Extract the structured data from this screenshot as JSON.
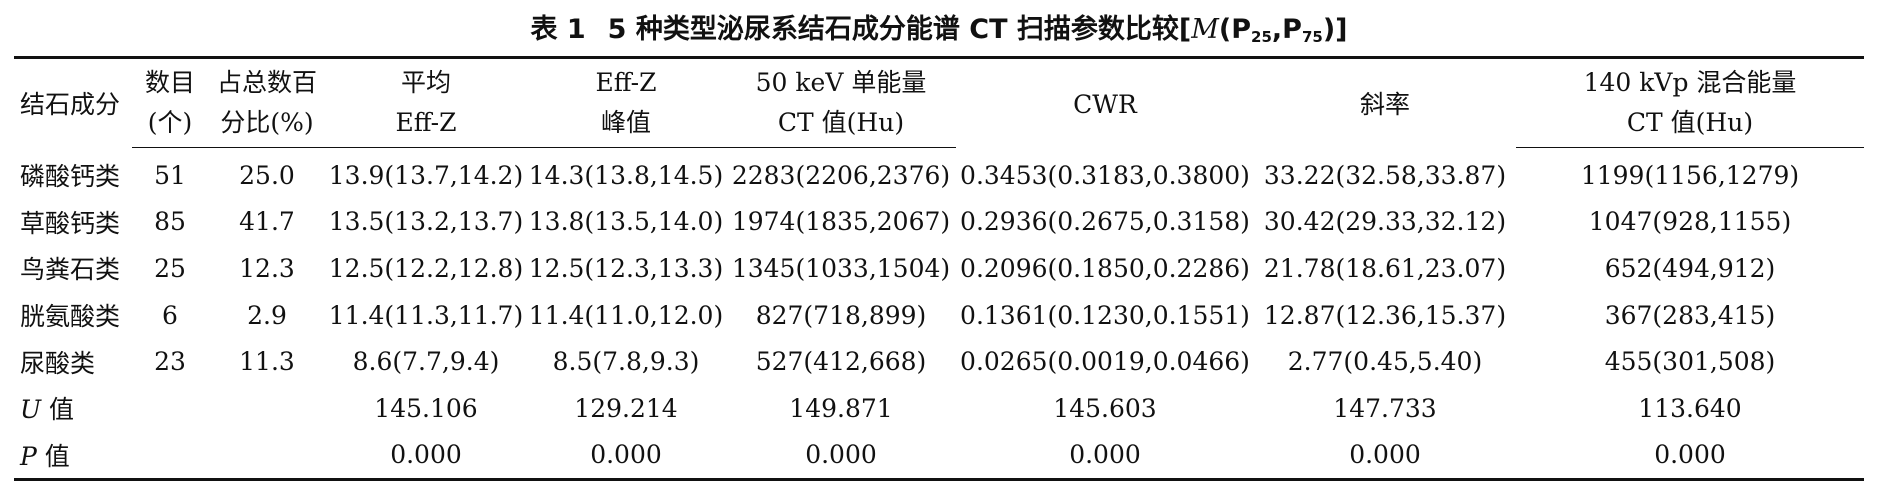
{
  "caption": {
    "label": "表 1",
    "title": "5 种类型泌尿系结石成分能谱 CT 扫描参数比较",
    "stat_prefix": "[",
    "stat_M": "M",
    "stat_open": "(P",
    "p25_sub": "25",
    "stat_sep": ",P",
    "p75_sub": "75",
    "stat_close": ")]"
  },
  "header": {
    "component": "结石成分",
    "count_line1": "数目",
    "count_line2": "(个)",
    "pct_line1": "占总数百",
    "pct_line2": "分比(%)",
    "effz_mean_line1": "平均",
    "effz_mean_line2": "Eff-Z",
    "effz_peak_line1": "Eff-Z",
    "effz_peak_line2": "峰值",
    "kev50_line1": "50 keV 单能量",
    "kev50_line2": "CT 值(Hu)",
    "cwr": "CWR",
    "slope": "斜率",
    "kvp140_line1": "140 kVp 混合能量",
    "kvp140_line2": "CT 值(Hu)"
  },
  "rows": [
    {
      "component": "磷酸钙类",
      "count": "51",
      "pct": "25.0",
      "effz_mean": "13.9(13.7,14.2)",
      "effz_peak": "14.3(13.8,14.5)",
      "kev50": "2283(2206,2376)",
      "cwr": "0.3453(0.3183,0.3800)",
      "slope": "33.22(32.58,33.87)",
      "kvp140": "1199(1156,1279)"
    },
    {
      "component": "草酸钙类",
      "count": "85",
      "pct": "41.7",
      "effz_mean": "13.5(13.2,13.7)",
      "effz_peak": "13.8(13.5,14.0)",
      "kev50": "1974(1835,2067)",
      "cwr": "0.2936(0.2675,0.3158)",
      "slope": "30.42(29.33,32.12)",
      "kvp140": "1047(928,1155)"
    },
    {
      "component": "鸟粪石类",
      "count": "25",
      "pct": "12.3",
      "effz_mean": "12.5(12.2,12.8)",
      "effz_peak": "12.5(12.3,13.3)",
      "kev50": "1345(1033,1504)",
      "cwr": "0.2096(0.1850,0.2286)",
      "slope": "21.78(18.61,23.07)",
      "kvp140": "652(494,912)"
    },
    {
      "component": "胱氨酸类",
      "count": "6",
      "pct": "2.9",
      "effz_mean": "11.4(11.3,11.7)",
      "effz_peak": "11.4(11.0,12.0)",
      "kev50": "827(718,899)",
      "cwr": "0.1361(0.1230,0.1551)",
      "slope": "12.87(12.36,15.37)",
      "kvp140": "367(283,415)"
    },
    {
      "component": "尿酸类",
      "count": "23",
      "pct": "11.3",
      "effz_mean": "8.6(7.7,9.4)",
      "effz_peak": "8.5(7.8,9.3)",
      "kev50": "527(412,668)",
      "cwr": "0.0265(0.0019,0.0466)",
      "slope": "2.77(0.45,5.40)",
      "kvp140": "455(301,508)"
    }
  ],
  "u_row": {
    "label_var": "U",
    "label_suffix": " 值",
    "effz_mean": "145.106",
    "effz_peak": "129.214",
    "kev50": "149.871",
    "cwr": "145.603",
    "slope": "147.733",
    "kvp140": "113.640"
  },
  "p_row": {
    "label_var": "P",
    "label_suffix": " 值",
    "effz_mean": "0.000",
    "effz_peak": "0.000",
    "kev50": "0.000",
    "cwr": "0.000",
    "slope": "0.000",
    "kvp140": "0.000"
  }
}
